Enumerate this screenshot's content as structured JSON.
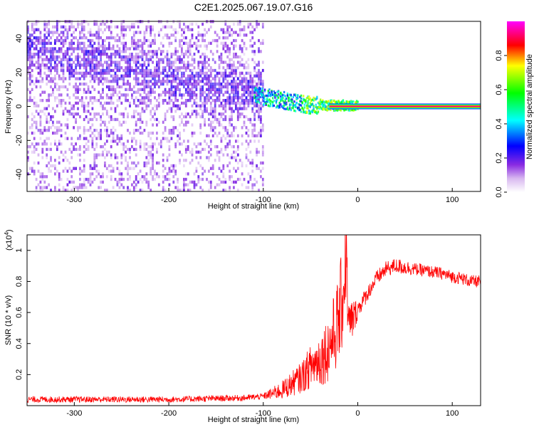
{
  "title": "C2E1.2025.067.19.07.G16",
  "chart_data": [
    {
      "type": "heatmap",
      "xlabel": "Height of straight line (km)",
      "ylabel": "Frequency (Hz)",
      "xlim": [
        -350,
        130
      ],
      "ylim": [
        -50,
        50
      ],
      "xticks": [
        -300,
        -200,
        -100,
        0,
        100
      ],
      "yticks": [
        -40,
        -20,
        0,
        20,
        40
      ],
      "colorbar": {
        "label": "Normalized spectral amplitude",
        "range": [
          0.0,
          1.0
        ],
        "ticks": [
          "0.0",
          "0.2",
          "0.4",
          "0.6",
          "0.8"
        ],
        "colors": [
          "#ffffff",
          "#8a2be2",
          "#0000ff",
          "#00ffff",
          "#00ff00",
          "#ffff00",
          "#ff0000",
          "#ff00ff"
        ]
      },
      "features": {
        "noise_region_x": [
          -350,
          -100
        ],
        "noise_amplitude": 0.15,
        "trend_line": [
          [
            -350,
            35
          ],
          [
            -200,
            15
          ],
          [
            -100,
            5
          ],
          [
            -50,
            0
          ]
        ],
        "signal_line_y": 0,
        "signal_x": [
          -30,
          130
        ],
        "signal_amplitude": 1.0
      }
    },
    {
      "type": "line",
      "xlabel": "Height of straight line (km)",
      "ylabel": "SNR (10 * v/v)",
      "y_multiplier": "(x10",
      "y_exponent": "4",
      "y_multiplier_close": ")",
      "xlim": [
        -350,
        130
      ],
      "ylim": [
        0,
        1.1
      ],
      "xticks": [
        -300,
        -200,
        -100,
        0,
        100
      ],
      "yticks": [
        0.2,
        0.4,
        0.6,
        0.8,
        1.0
      ],
      "series": [
        {
          "color": "#ff0000",
          "x": [
            -350,
            -200,
            -120,
            -100,
            -80,
            -60,
            -50,
            -40,
            -30,
            -20,
            -15,
            -12,
            -10,
            0,
            10,
            20,
            30,
            40,
            50,
            60,
            70,
            80,
            90,
            100,
            110,
            120,
            130
          ],
          "values": [
            0.04,
            0.04,
            0.05,
            0.06,
            0.1,
            0.18,
            0.25,
            0.3,
            0.38,
            0.55,
            0.75,
            1.05,
            0.5,
            0.62,
            0.72,
            0.82,
            0.88,
            0.9,
            0.89,
            0.88,
            0.87,
            0.86,
            0.85,
            0.83,
            0.82,
            0.8,
            0.8
          ],
          "noise": [
            0.02,
            0.02,
            0.02,
            0.02,
            0.06,
            0.1,
            0.14,
            0.18,
            0.22,
            0.3,
            0.35,
            0.35,
            0.2,
            0.06,
            0.05,
            0.05,
            0.05,
            0.05,
            0.05,
            0.04,
            0.04,
            0.04,
            0.04,
            0.04,
            0.04,
            0.04,
            0.04
          ]
        }
      ]
    }
  ]
}
